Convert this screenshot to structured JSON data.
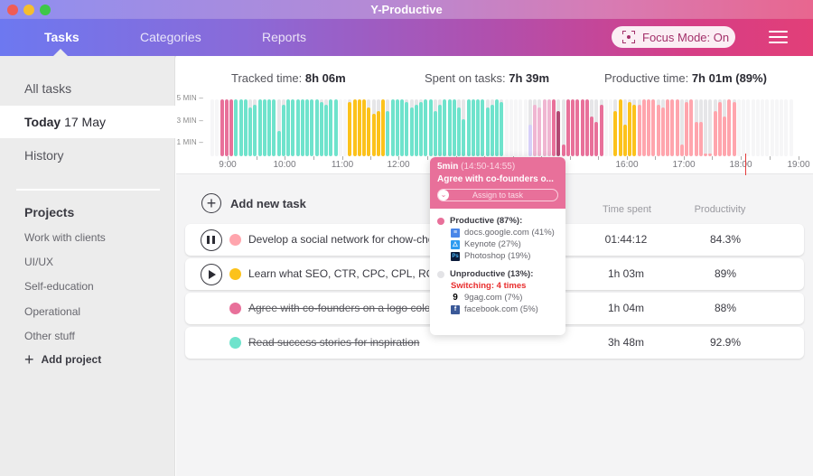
{
  "window": {
    "title": "Y-Productive"
  },
  "nav": {
    "tabs": [
      {
        "label": "Tasks",
        "active": true
      },
      {
        "label": "Categories",
        "active": false
      },
      {
        "label": "Reports",
        "active": false
      }
    ],
    "focus_mode_label": "Focus Mode: On",
    "menu_icon": "hamburger-icon"
  },
  "sidebar": {
    "items": [
      {
        "label": "All tasks"
      },
      {
        "label_bold": "Today",
        "label": "17 May",
        "active": true
      },
      {
        "label": "History"
      }
    ],
    "projects_title": "Projects",
    "projects": [
      "Work with clients",
      "UI/UX",
      "Self-education",
      "Operational",
      "Other stuff"
    ],
    "add_project_label": "Add project"
  },
  "stats": {
    "tracked_label": "Tracked time:",
    "tracked_value": "8h 06m",
    "spent_label": "Spent on tasks:",
    "spent_value": "7h 39m",
    "productive_label": "Productive time:",
    "productive_value": "7h 01m (89%)"
  },
  "timeline": {
    "y_labels": [
      "5 MIN –",
      "3 MIN –",
      "1 MIN –"
    ],
    "x_labels": [
      "9:00",
      "10:00",
      "11:00",
      "12:00",
      "16:00",
      "17:00",
      "18:00",
      "19:00"
    ],
    "colors": {
      "pink": "#e8709a",
      "teal": "#6fe3cc",
      "yellow": "#fcc21b",
      "lavender": "#d6d0f8",
      "lightpink": "#f0b6d2",
      "darkpink": "#b04873",
      "salmon": "#ffa5ad",
      "track": "#e6e6e8"
    }
  },
  "tasks": {
    "add_label": "Add new task",
    "col_time": "Time spent",
    "col_productivity": "Productivity",
    "rows": [
      {
        "name": "Develop a social network for chow-chow",
        "color": "#ffa5ad",
        "control": "pause",
        "done": false,
        "time": "01:44:12",
        "productivity": "84.3%"
      },
      {
        "name": "Learn what SEO, CTR, CPC, CPL, ROI, etc.",
        "color": "#fcc21b",
        "control": "play",
        "done": false,
        "time": "1h 03m",
        "productivity": "89%"
      },
      {
        "name": "Agree with co-founders on a logo color",
        "color": "#e8709a",
        "control": "none",
        "done": true,
        "time": "1h 04m",
        "productivity": "88%"
      },
      {
        "name": "Read success stories for inspiration",
        "color": "#6fe3cc",
        "control": "none",
        "done": true,
        "time": "3h 48m",
        "productivity": "92.9%"
      }
    ]
  },
  "tooltip": {
    "duration": "5min",
    "range": "(14:50-14:55)",
    "task": "Agree with co-founders o...",
    "assign_label": "Assign to task",
    "productive_label": "Productive (87%):",
    "productive_apps": [
      {
        "name": "docs.google.com (41%)",
        "icon": "google-docs-icon"
      },
      {
        "name": "Keynote (27%)",
        "icon": "keynote-icon"
      },
      {
        "name": "Photoshop (19%)",
        "icon": "photoshop-icon"
      }
    ],
    "unproductive_label": "Unproductive (13%):",
    "switching_label": "Switching: 4 times",
    "unproductive_apps": [
      {
        "name": "9gag.com (7%)",
        "icon": "9gag-icon"
      },
      {
        "name": "facebook.com (5%)",
        "icon": "facebook-icon"
      }
    ]
  }
}
